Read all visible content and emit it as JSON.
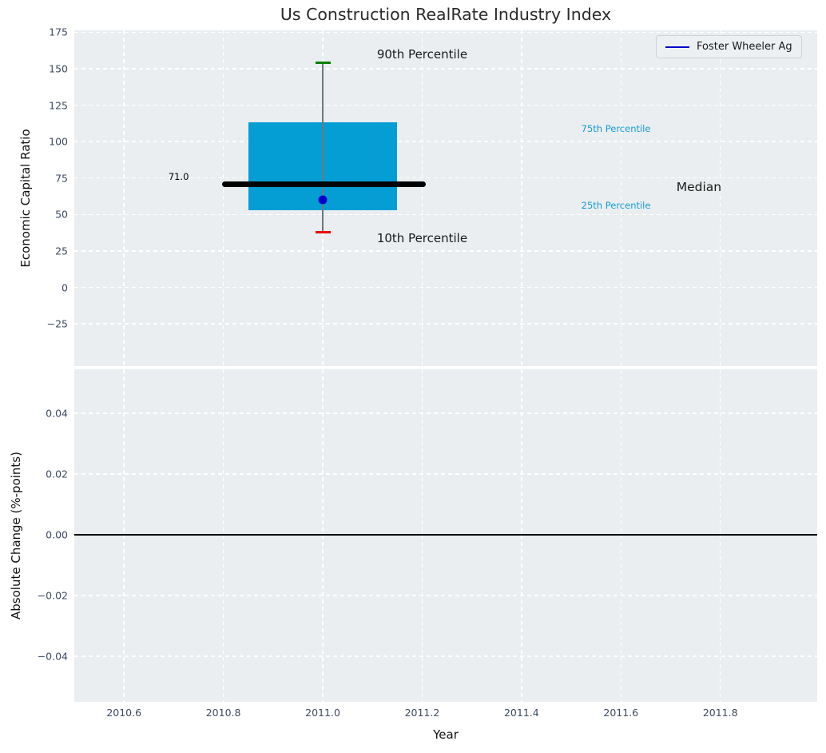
{
  "title": "Us Construction RealRate Industry Index",
  "axis": {
    "x_label": "Year",
    "top_y_label": "Economic Capital Ratio",
    "bottom_y_label": "Absolute Change (%-points)"
  },
  "legend": {
    "label": "Foster Wheeler Ag",
    "line_color": "#0000cc",
    "position": "upper right"
  },
  "colors": {
    "figure_bg": "#ffffff",
    "axes_bg": "#eaeef0",
    "grid": "#ffffff",
    "tick_label": "#3c4a63",
    "title": "#2a2a2a",
    "axis_label": "#111111",
    "box_fill": "#049dd4",
    "median_line": "#000000",
    "whisker": "#6b7a80",
    "p90_cap": "#008000",
    "p10_cap": "#ee0000",
    "company_point": "#0000cc",
    "percentile_text": "#179bd4",
    "annotation_text": "#1a1a1a",
    "zero_line": "#000000"
  },
  "chart_data": [
    {
      "type": "box",
      "title": "Us Construction RealRate Industry Index",
      "ylabel": "Economic Capital Ratio",
      "xlabel": "",
      "xlim": [
        2010.5,
        2011.995
      ],
      "ylim": [
        -54,
        176.3
      ],
      "grid": true,
      "legend_entries": [
        "Foster Wheeler Ag"
      ],
      "yticks": [
        {
          "v": 175,
          "label": "175"
        },
        {
          "v": 150,
          "label": "150"
        },
        {
          "v": 125,
          "label": "125"
        },
        {
          "v": 100,
          "label": "100"
        },
        {
          "v": 75,
          "label": "75"
        },
        {
          "v": 50,
          "label": "50"
        },
        {
          "v": 25,
          "label": "25"
        },
        {
          "v": 0,
          "label": "0"
        },
        {
          "v": -25,
          "label": "−25"
        }
      ],
      "xticks": [
        {
          "v": 2010.6,
          "label": ""
        },
        {
          "v": 2010.8,
          "label": ""
        },
        {
          "v": 2011.0,
          "label": ""
        },
        {
          "v": 2011.2,
          "label": ""
        },
        {
          "v": 2011.4,
          "label": ""
        },
        {
          "v": 2011.6,
          "label": ""
        },
        {
          "v": 2011.8,
          "label": ""
        }
      ],
      "box": {
        "x": 2011.0,
        "box_width": 0.3,
        "p10": 38,
        "p25": 53,
        "median": 71.0,
        "p75": 113,
        "p90": 154,
        "median_span": [
          2010.797,
          2011.207
        ],
        "median_label": "71.0"
      },
      "series": [
        {
          "name": "Foster Wheeler Ag",
          "type": "point",
          "x": 2011.0,
          "y": 60
        }
      ],
      "annotations": [
        {
          "text": "90th Percentile",
          "x": 2011.2,
          "y": 160,
          "size": 15,
          "color": "#1a1a1a"
        },
        {
          "text": "10th Percentile",
          "x": 2011.2,
          "y": 34,
          "size": 15,
          "color": "#1a1a1a"
        },
        {
          "text": "75th Percentile",
          "x": 2011.59,
          "y": 109,
          "size": 11.5,
          "color": "#179bd4"
        },
        {
          "text": "25th Percentile",
          "x": 2011.59,
          "y": 56,
          "size": 11.5,
          "color": "#179bd4"
        },
        {
          "text": "Median",
          "x": 2011.757,
          "y": 69,
          "size": 15.5,
          "color": "#1a1a1a"
        },
        {
          "text": "71.0",
          "x": 2010.71,
          "y": 76,
          "size": 11.5,
          "color": "#000000"
        }
      ]
    },
    {
      "type": "line",
      "ylabel": "Absolute Change (%-points)",
      "xlabel": "Year",
      "xlim": [
        2010.5,
        2011.995
      ],
      "ylim": [
        -0.055,
        0.0545
      ],
      "grid": true,
      "yticks": [
        {
          "v": 0.04,
          "label": "0.04"
        },
        {
          "v": 0.02,
          "label": "0.02"
        },
        {
          "v": 0.0,
          "label": "0.00"
        },
        {
          "v": -0.02,
          "label": "−0.02"
        },
        {
          "v": -0.04,
          "label": "−0.04"
        }
      ],
      "xticks": [
        {
          "v": 2010.6,
          "label": "2010.6"
        },
        {
          "v": 2010.8,
          "label": "2010.8"
        },
        {
          "v": 2011.0,
          "label": "2011.0"
        },
        {
          "v": 2011.2,
          "label": "2011.2"
        },
        {
          "v": 2011.4,
          "label": "2011.4"
        },
        {
          "v": 2011.6,
          "label": "2011.6"
        },
        {
          "v": 2011.8,
          "label": "2011.8"
        }
      ],
      "zero_line": 0.0,
      "series": []
    }
  ]
}
